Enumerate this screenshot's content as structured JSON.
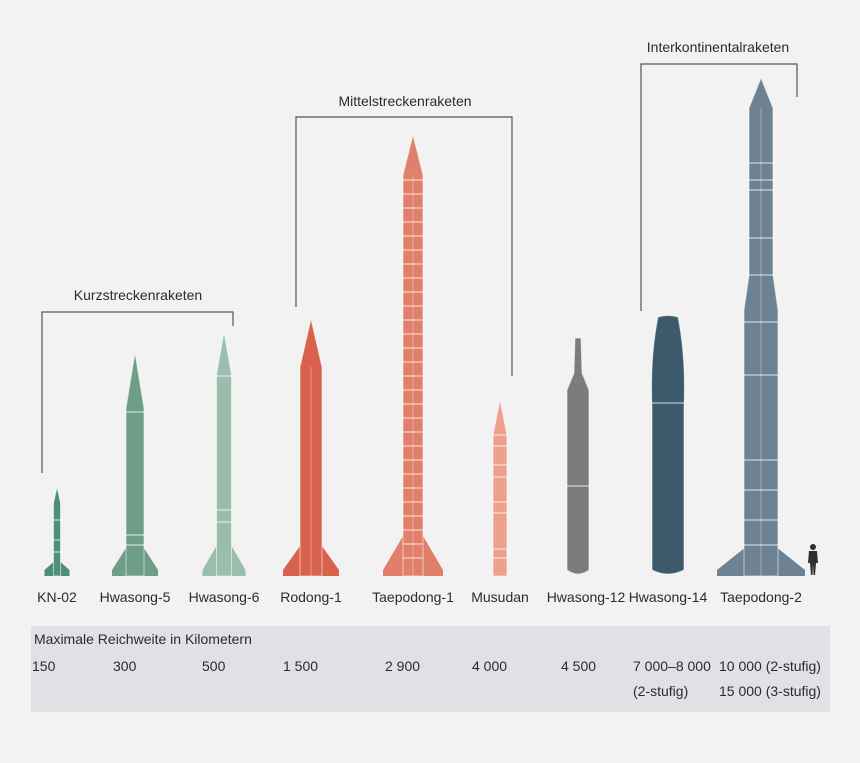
{
  "groups": [
    {
      "label": "Kurzstreckenraketen"
    },
    {
      "label": "Mittelstreckenraketen"
    },
    {
      "label": "Interkontinentalraketen"
    }
  ],
  "missiles": [
    {
      "name": "KN-02",
      "range": "150",
      "range_note": "",
      "color": "#4e8f78"
    },
    {
      "name": "Hwasong-5",
      "range": "300",
      "range_note": "",
      "color": "#6e9e88"
    },
    {
      "name": "Hwasong-6",
      "range": "500",
      "range_note": "",
      "color": "#9bbdac"
    },
    {
      "name": "Rodong-1",
      "range": "1 500",
      "range_note": "",
      "color": "#d9624e"
    },
    {
      "name": "Taepodong-1",
      "range": "2 900",
      "range_note": "",
      "color": "#e0806a"
    },
    {
      "name": "Musudan",
      "range": "4 000",
      "range_note": "",
      "color": "#eea08c"
    },
    {
      "name": "Hwasong-12",
      "range": "4 500",
      "range_note": "",
      "color": "#7c7c7c"
    },
    {
      "name": "Hwasong-14",
      "range": "7 000–8 000",
      "range_note": "(2-stufig)",
      "color": "#3d5a6c"
    },
    {
      "name": "Taepodong-2",
      "range": "10 000 (2-stufig)",
      "range_note": "15 000 (3-stufig)",
      "color": "#6d8393"
    }
  ],
  "range_panel": {
    "title": "Maximale Reichweite in Kilometern"
  },
  "human_icon": "human-silhouette-icon",
  "colors": {
    "background": "#f2f2f2",
    "panel": "#dfe1e4",
    "bracket": "#555555"
  }
}
